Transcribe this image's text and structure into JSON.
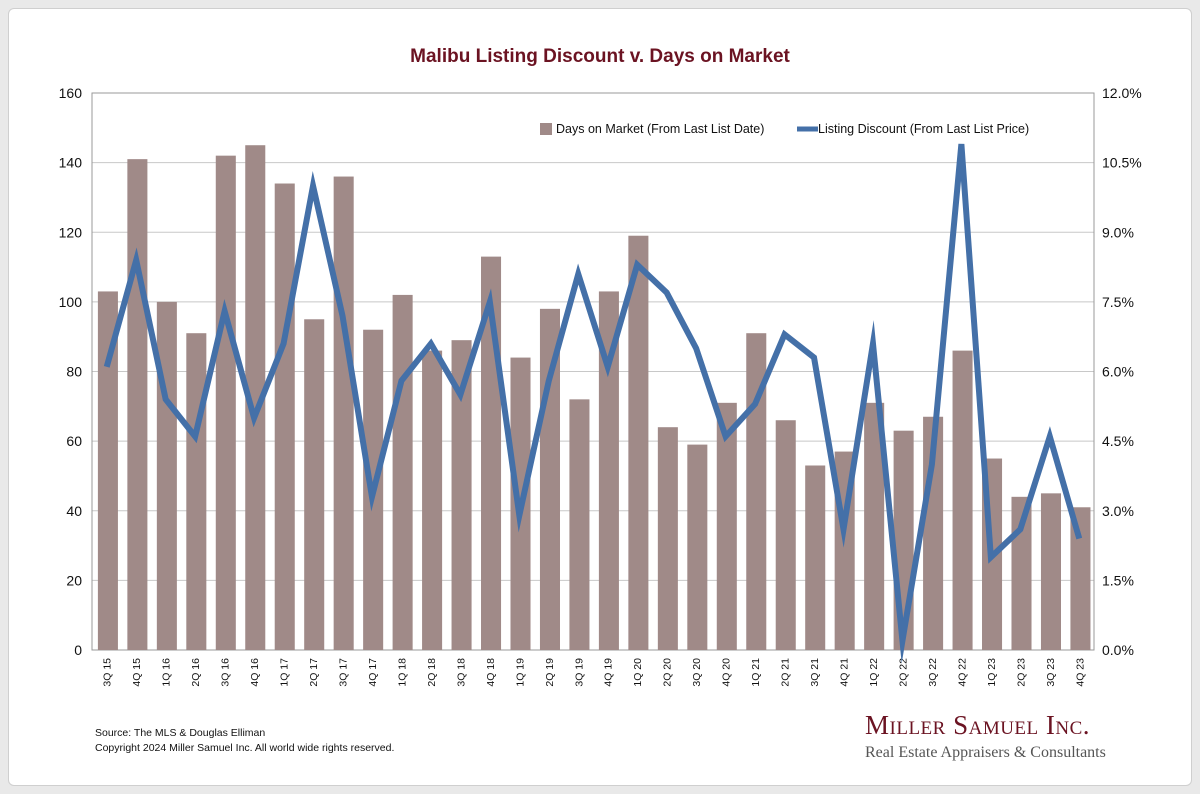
{
  "chart_data": {
    "type": "bar+line",
    "title": "Malibu Listing Discount v. Days on Market",
    "categories": [
      "3Q 15",
      "4Q 15",
      "1Q 16",
      "2Q 16",
      "3Q 16",
      "4Q 16",
      "1Q 17",
      "2Q 17",
      "3Q 17",
      "4Q 17",
      "1Q 18",
      "2Q 18",
      "3Q 18",
      "4Q 18",
      "1Q 19",
      "2Q 19",
      "3Q 19",
      "4Q 19",
      "1Q 20",
      "2Q 20",
      "3Q 20",
      "4Q 20",
      "1Q 21",
      "2Q 21",
      "3Q 21",
      "4Q 21",
      "1Q 22",
      "2Q 22",
      "3Q 22",
      "4Q 22",
      "1Q 23",
      "2Q 23",
      "3Q 23",
      "4Q 23"
    ],
    "series": [
      {
        "name": "Days on Market (From Last List Date)",
        "type": "bar",
        "axis": "left",
        "color": "#a08a88",
        "values": [
          103,
          141,
          100,
          91,
          142,
          145,
          134,
          95,
          136,
          92,
          102,
          86,
          89,
          113,
          84,
          98,
          72,
          103,
          119,
          64,
          59,
          71,
          91,
          66,
          53,
          57,
          71,
          63,
          67,
          86,
          55,
          44,
          45,
          41
        ]
      },
      {
        "name": "Listing Discount (From Last List Price)",
        "type": "line",
        "axis": "right",
        "color": "#4470a8",
        "values": [
          6.1,
          8.4,
          5.4,
          4.6,
          7.3,
          5.0,
          6.6,
          10.0,
          7.2,
          3.3,
          5.8,
          6.6,
          5.5,
          7.5,
          2.9,
          5.8,
          8.1,
          6.1,
          8.3,
          7.7,
          6.5,
          4.6,
          5.3,
          6.8,
          6.3,
          2.6,
          6.6,
          0.2,
          4.0,
          10.9,
          2.0,
          2.6,
          4.6,
          2.4
        ]
      }
    ],
    "ylim": [
      0,
      160
    ],
    "yticks": [
      "0",
      "20",
      "40",
      "60",
      "80",
      "100",
      "120",
      "140",
      "160"
    ],
    "y2lim": [
      0,
      12
    ],
    "y2ticks": [
      "0.0%",
      "1.5%",
      "3.0%",
      "4.5%",
      "6.0%",
      "7.5%",
      "9.0%",
      "10.5%",
      "12.0%"
    ],
    "grid": true,
    "legend": "top-right"
  },
  "footer": {
    "source": "Source: The MLS & Douglas Elliman",
    "copyright": "Copyright 2024 Miller Samuel Inc.  All world wide rights reserved."
  },
  "logo": {
    "name": "Miller Samuel Inc.",
    "tagline": "Real Estate Appraisers & Consultants"
  }
}
